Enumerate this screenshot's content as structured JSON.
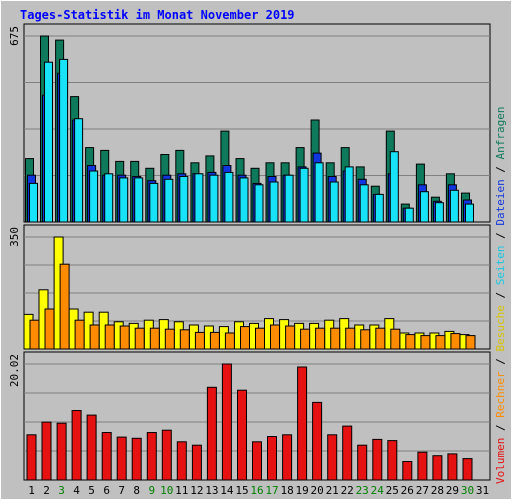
{
  "title": "Tages-Statistik im Monat November 2019",
  "colors": {
    "background": "#ffffff",
    "frame": "#c0c0c0",
    "plot_bg": "#c0c0c0",
    "title": "#0000ff",
    "gridline": "#808080",
    "weekday_label": "#000000",
    "weekend_label": "#008000",
    "anfragen": "#0e7a5b",
    "dateien": "#1036e0",
    "seiten": "#18e2f8",
    "besuche": "#ffff00",
    "rechner": "#ff8c00",
    "volumen": "#e61212"
  },
  "right_legend": {
    "parts": [
      {
        "text": "Volumen",
        "color": "#e61212"
      },
      {
        "text": " / ",
        "color": "#000000"
      },
      {
        "text": "Rechner",
        "color": "#ff8c00"
      },
      {
        "text": " / ",
        "color": "#000000"
      },
      {
        "text": "Besuche",
        "color": "#d6c400"
      },
      {
        "text": " / ",
        "color": "#000000"
      },
      {
        "text": "Seiten",
        "color": "#18c8e0"
      },
      {
        "text": " / ",
        "color": "#000000"
      },
      {
        "text": "Dateien",
        "color": "#1036e0"
      },
      {
        "text": " / ",
        "color": "#000000"
      },
      {
        "text": "Anfragen",
        "color": "#0e7a5b"
      }
    ]
  },
  "chart_data": [
    {
      "type": "bar",
      "panel": "hits",
      "max_label": "675",
      "ylim": [
        0,
        675
      ],
      "categories": [
        "1",
        "2",
        "3",
        "4",
        "5",
        "6",
        "7",
        "8",
        "9",
        "10",
        "11",
        "12",
        "13",
        "14",
        "15",
        "16",
        "17",
        "18",
        "19",
        "20",
        "21",
        "22",
        "23",
        "24",
        "25",
        "26",
        "27",
        "28",
        "29",
        "30",
        "31"
      ],
      "weekend": [
        false,
        false,
        true,
        false,
        false,
        false,
        false,
        false,
        true,
        true,
        false,
        false,
        false,
        false,
        false,
        true,
        true,
        false,
        false,
        false,
        false,
        false,
        true,
        true,
        false,
        false,
        false,
        false,
        false,
        true,
        false
      ],
      "series": [
        {
          "name": "Anfragen",
          "values": [
            230,
            675,
            660,
            455,
            270,
            260,
            220,
            220,
            195,
            245,
            260,
            215,
            240,
            330,
            230,
            195,
            215,
            215,
            270,
            370,
            215,
            270,
            200,
            130,
            330,
            65,
            210,
            90,
            175,
            105,
            0
          ]
        },
        {
          "name": "Dateien",
          "values": [
            170,
            460,
            540,
            370,
            205,
            170,
            170,
            165,
            150,
            170,
            175,
            175,
            180,
            205,
            170,
            140,
            165,
            170,
            200,
            250,
            165,
            185,
            155,
            100,
            175,
            50,
            135,
            75,
            135,
            80,
            0
          ]
        },
        {
          "name": "Seiten",
          "values": [
            140,
            580,
            590,
            375,
            185,
            175,
            160,
            160,
            140,
            155,
            165,
            175,
            170,
            180,
            160,
            135,
            145,
            170,
            195,
            215,
            145,
            200,
            135,
            100,
            255,
            50,
            110,
            70,
            115,
            65,
            0
          ]
        }
      ]
    },
    {
      "type": "bar",
      "panel": "visits",
      "max_label": "350",
      "ylim": [
        0,
        350
      ],
      "categories": [
        "1",
        "2",
        "3",
        "4",
        "5",
        "6",
        "7",
        "8",
        "9",
        "10",
        "11",
        "12",
        "13",
        "14",
        "15",
        "16",
        "17",
        "18",
        "19",
        "20",
        "21",
        "22",
        "23",
        "24",
        "25",
        "26",
        "27",
        "28",
        "29",
        "30",
        "31"
      ],
      "series": [
        {
          "name": "Besuche",
          "values": [
            108,
            185,
            350,
            125,
            115,
            115,
            85,
            80,
            90,
            92,
            85,
            75,
            72,
            70,
            85,
            80,
            95,
            92,
            80,
            80,
            90,
            95,
            75,
            75,
            95,
            50,
            50,
            50,
            55,
            45,
            0
          ]
        },
        {
          "name": "Rechner",
          "values": [
            90,
            125,
            265,
            90,
            75,
            75,
            72,
            65,
            65,
            62,
            60,
            52,
            52,
            50,
            70,
            65,
            75,
            72,
            62,
            65,
            65,
            65,
            60,
            65,
            62,
            45,
            42,
            42,
            48,
            42,
            0
          ]
        }
      ]
    },
    {
      "type": "bar",
      "panel": "volume",
      "max_label": "20.02",
      "ylim": [
        0,
        20.02
      ],
      "categories": [
        "1",
        "2",
        "3",
        "4",
        "5",
        "6",
        "7",
        "8",
        "9",
        "10",
        "11",
        "12",
        "13",
        "14",
        "15",
        "16",
        "17",
        "18",
        "19",
        "20",
        "21",
        "22",
        "23",
        "24",
        "25",
        "26",
        "27",
        "28",
        "29",
        "30",
        "31"
      ],
      "series": [
        {
          "name": "Volumen",
          "values": [
            7.8,
            10.0,
            9.8,
            12.0,
            11.2,
            8.2,
            7.4,
            7.2,
            8.2,
            8.6,
            6.6,
            6.0,
            16.0,
            20.02,
            15.5,
            6.6,
            7.5,
            7.8,
            19.5,
            13.4,
            7.8,
            9.3,
            6.0,
            7.0,
            6.8,
            3.2,
            4.8,
            4.2,
            4.5,
            3.7,
            0
          ]
        }
      ]
    }
  ]
}
